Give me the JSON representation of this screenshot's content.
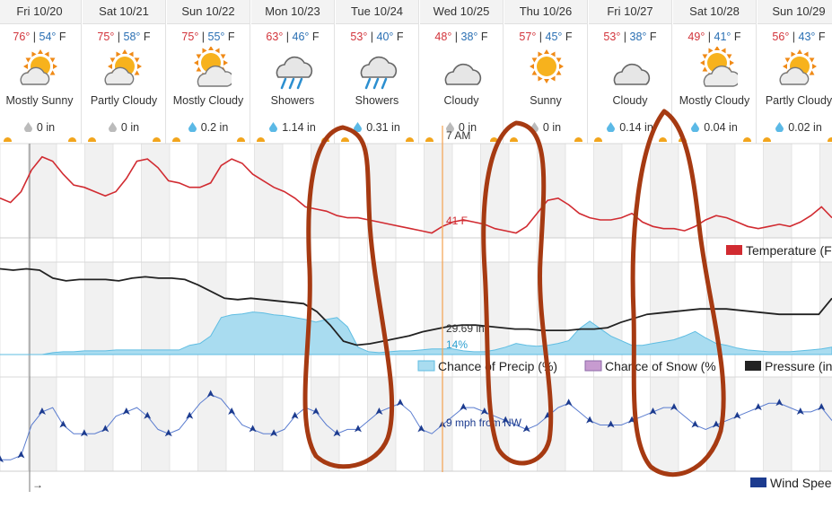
{
  "forecast": {
    "days": [
      {
        "date": "Fri 10/20",
        "hi": "76°",
        "lo": "54°",
        "unit": "F",
        "condition": "Mostly Sunny",
        "icon": "sun-cloud-icon",
        "precip": "0 in",
        "drop": "grey"
      },
      {
        "date": "Sat 10/21",
        "hi": "75°",
        "lo": "58°",
        "unit": "F",
        "condition": "Partly Cloudy",
        "icon": "sun-cloud-icon",
        "precip": "0 in",
        "drop": "grey"
      },
      {
        "date": "Sun 10/22",
        "hi": "75°",
        "lo": "55°",
        "unit": "F",
        "condition": "Mostly Cloudy",
        "icon": "cloud-sun-icon",
        "precip": "0.2 in",
        "drop": "blue"
      },
      {
        "date": "Mon 10/23",
        "hi": "63°",
        "lo": "46°",
        "unit": "F",
        "condition": "Showers",
        "icon": "rain-cloud-icon",
        "precip": "1.14 in",
        "drop": "blue"
      },
      {
        "date": "Tue 10/24",
        "hi": "53°",
        "lo": "40°",
        "unit": "F",
        "condition": "Showers",
        "icon": "rain-cloud-icon",
        "precip": "0.31 in",
        "drop": "blue"
      },
      {
        "date": "Wed 10/25",
        "hi": "48°",
        "lo": "38°",
        "unit": "F",
        "condition": "Cloudy",
        "icon": "cloud-icon",
        "precip": "0 in",
        "drop": "grey"
      },
      {
        "date": "Thu 10/26",
        "hi": "57°",
        "lo": "45°",
        "unit": "F",
        "condition": "Sunny",
        "icon": "sun-icon",
        "precip": "0 in",
        "drop": "grey"
      },
      {
        "date": "Fri 10/27",
        "hi": "53°",
        "lo": "38°",
        "unit": "F",
        "condition": "Cloudy",
        "icon": "cloud-icon",
        "precip": "0.14 in",
        "drop": "blue"
      },
      {
        "date": "Sat 10/28",
        "hi": "49°",
        "lo": "41°",
        "unit": "F",
        "condition": "Mostly Cloudy",
        "icon": "cloud-sun-icon",
        "precip": "0.04 in",
        "drop": "blue"
      },
      {
        "date": "Sun 10/29",
        "hi": "56°",
        "lo": "43°",
        "unit": "F",
        "condition": "Partly Cloudy",
        "icon": "sun-cloud-icon",
        "precip": "0.02 in",
        "drop": "blue"
      }
    ]
  },
  "cursor": {
    "time_label": "7 AM",
    "temperature": "41 F",
    "pressure": "29.69 in",
    "precip_chance": "14%",
    "wind": "9 mph from NW"
  },
  "colors": {
    "temperature": "#d12b31",
    "pressure": "#222222",
    "precip_fill": "#a9dcf0",
    "precip_line": "#5fbde2",
    "snow": "#c79bd0",
    "wind": "#1c3b8f",
    "annotation": "#a63a12",
    "cursor": "#f4a251"
  },
  "chart_data": [
    {
      "type": "line",
      "title": "",
      "series": [
        {
          "name": "Temperature (F)",
          "values": [
            57,
            55,
            60,
            70,
            76,
            74,
            68,
            63,
            62,
            60,
            58,
            60,
            66,
            74,
            75,
            71,
            65,
            64,
            62,
            62,
            64,
            72,
            75,
            73,
            68,
            65,
            62,
            60,
            57,
            53,
            52,
            51,
            49,
            48,
            48,
            47,
            46,
            45,
            44,
            43,
            42,
            41,
            44,
            46,
            47,
            46,
            45,
            43,
            42,
            41,
            44,
            50,
            56,
            57,
            54,
            50,
            48,
            47,
            47,
            48,
            50,
            46,
            44,
            43,
            43,
            42,
            44,
            47,
            49,
            48,
            46,
            44,
            43,
            44,
            45,
            44,
            46,
            49,
            53,
            48
          ]
        }
      ]
    },
    {
      "type": "area",
      "series": [
        {
          "name": "Chance of Precip (%)",
          "values": [
            0,
            0,
            0,
            0,
            0,
            2,
            3,
            3,
            4,
            4,
            4,
            5,
            5,
            5,
            5,
            5,
            5,
            5,
            10,
            12,
            20,
            40,
            43,
            44,
            46,
            45,
            43,
            42,
            40,
            38,
            35,
            38,
            40,
            30,
            8,
            3,
            2,
            3,
            4,
            4,
            5,
            6,
            6,
            6,
            4,
            3,
            3,
            5,
            8,
            12,
            10,
            9,
            10,
            12,
            15,
            28,
            36,
            28,
            20,
            15,
            10,
            10,
            12,
            14,
            16,
            20,
            25,
            18,
            12,
            10,
            7,
            5,
            4,
            3,
            3,
            3,
            4,
            5,
            6,
            8
          ]
        },
        {
          "name": "Chance of Snow (%)",
          "values": []
        },
        {
          "name": "Pressure (in)",
          "values": [
            30.12,
            30.11,
            30.12,
            30.11,
            30.05,
            30.03,
            30.04,
            30.04,
            30.04,
            30.03,
            30.05,
            30.06,
            30.05,
            30.05,
            30.04,
            30.0,
            29.95,
            29.9,
            29.89,
            29.9,
            29.89,
            29.88,
            29.87,
            29.86,
            29.8,
            29.7,
            29.58,
            29.55,
            29.56,
            29.58,
            29.6,
            29.62,
            29.65,
            29.67,
            29.69,
            29.7,
            29.7,
            29.69,
            29.68,
            29.67,
            29.67,
            29.66,
            29.66,
            29.66,
            29.67,
            29.67,
            29.68,
            29.72,
            29.75,
            29.78,
            29.79,
            29.8,
            29.81,
            29.82,
            29.82,
            29.82,
            29.81,
            29.8,
            29.79,
            29.78,
            29.78,
            29.78,
            29.78,
            29.9
          ]
        }
      ]
    },
    {
      "type": "line",
      "series": [
        {
          "name": "Wind Speed",
          "values": [
            2,
            2,
            3,
            10,
            13,
            14,
            10,
            8,
            8,
            8,
            9,
            12,
            13,
            14,
            12,
            9,
            8,
            9,
            12,
            15,
            17,
            16,
            13,
            10,
            9,
            8,
            8,
            9,
            12,
            14,
            13,
            10,
            8,
            9,
            9,
            11,
            13,
            14,
            15,
            13,
            9,
            8,
            10,
            12,
            14,
            14,
            13,
            12,
            11,
            10,
            9,
            10,
            12,
            14,
            15,
            13,
            11,
            10,
            10,
            10,
            11,
            12,
            13,
            14,
            14,
            12,
            10,
            9,
            10,
            11,
            12,
            13,
            14,
            15,
            15,
            14,
            13,
            13,
            14,
            11
          ]
        }
      ]
    }
  ],
  "legend": {
    "temperature": "Temperature (F",
    "precip": "Chance of Precip (%)",
    "snow": "Chance of Snow (%",
    "pressure": "Pressure (in",
    "wind": "Wind Spee"
  },
  "marker_arrow": "→"
}
